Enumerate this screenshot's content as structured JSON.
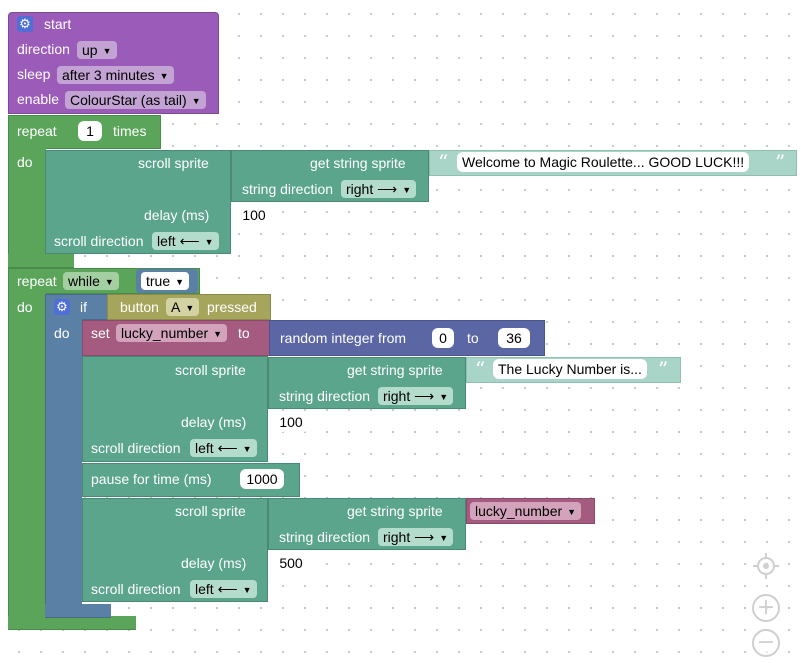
{
  "colors": {
    "purple": "#9b5bb8",
    "loop_green": "#5ba55b",
    "teal": "#5ba58c",
    "light_teal": "#a8d5c7",
    "slate": "#5b80a5",
    "mauve": "#a55b80",
    "olive": "#a5a55b",
    "indigo": "#5b67a5"
  },
  "start_block": {
    "icon": "gear-icon",
    "title": "start",
    "direction_label": "direction",
    "direction_value": "up",
    "sleep_label": "sleep",
    "sleep_value": "after 3 minutes",
    "enable_label": "enable",
    "enable_value": "ColourStar (as tail)"
  },
  "repeat1": {
    "label": "repeat",
    "times_value": "1",
    "times_label": "times",
    "do_label": "do",
    "scroll": {
      "label": "scroll sprite",
      "get_label": "get string sprite",
      "text": "Welcome to Magic Roulette...  GOOD LUCK!!!",
      "string_direction_label": "string direction",
      "string_direction_value": "right ⟶",
      "delay_label": "delay (ms)",
      "delay_value": "100",
      "scroll_direction_label": "scroll direction",
      "scroll_direction_value": "left ⟵"
    }
  },
  "repeat2": {
    "label": "repeat",
    "mode_value": "while",
    "condition_value": "true",
    "do_label": "do",
    "if_block": {
      "icon": "gear-icon",
      "if_label": "if",
      "do_label": "do",
      "button_label": "button",
      "button_value": "A",
      "pressed_label": "pressed",
      "set_label": "set",
      "variable": "lucky_number",
      "to_label": "to",
      "random_label": "random integer from",
      "random_from": "0",
      "random_to_label": "to",
      "random_to": "36",
      "scroll1": {
        "label": "scroll sprite",
        "get_label": "get string sprite",
        "text": "The Lucky Number is...",
        "string_direction_label": "string direction",
        "string_direction_value": "right ⟶",
        "delay_label": "delay (ms)",
        "delay_value": "100",
        "scroll_direction_label": "scroll direction",
        "scroll_direction_value": "left ⟵"
      },
      "pause_label": "pause for time (ms)",
      "pause_value": "1000",
      "scroll2": {
        "label": "scroll sprite",
        "get_label": "get string sprite",
        "variable": "lucky_number",
        "string_direction_label": "string direction",
        "string_direction_value": "right ⟶",
        "delay_label": "delay (ms)",
        "delay_value": "500",
        "scroll_direction_label": "scroll direction",
        "scroll_direction_value": "left ⟵"
      }
    }
  },
  "controls": {
    "recenter_icon": "crosshair-icon",
    "zoom_in_icon": "plus-icon",
    "zoom_out_icon": "minus-icon"
  }
}
